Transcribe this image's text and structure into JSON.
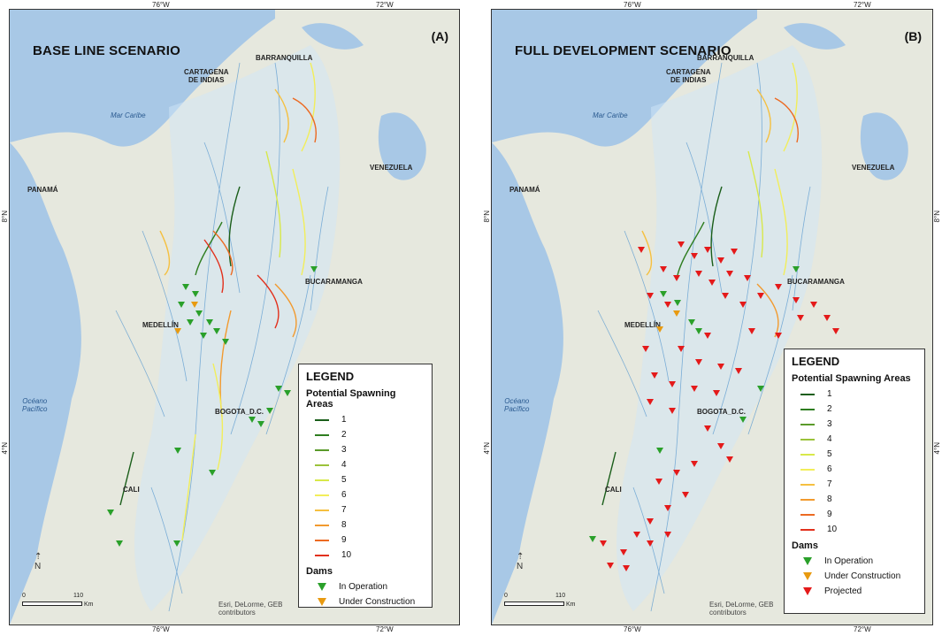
{
  "panels": [
    {
      "title": "BASE LINE SCENARIO",
      "letter": "(A)",
      "grid": {
        "top_left": "76°W",
        "top_right": "72°W",
        "bottom_left": "76°W",
        "bottom_right": "72°W",
        "left_8": "8°N",
        "left_4": "4°N",
        "right_8": "8°N",
        "right_4": "4°N"
      },
      "places": {
        "barranquilla": "BARRANQUILLA",
        "cartagena": "CARTAGENA\nDE INDIAS",
        "mar_caribe": "Mar Caribe",
        "venezuela": "VENEZUELA",
        "panama": "PANAMÁ",
        "bucaramanga": "BUCARAMANGA",
        "medellin": "MEDELLÍN",
        "bogota": "BOGOTA_D.C.",
        "cali": "CALI",
        "oceano": "Océano\nPacífico"
      },
      "legend": {
        "title": "LEGEND",
        "spawning_title": "Potential Spawning Areas",
        "classes": [
          {
            "label": "1",
            "color": "#1a5e1a"
          },
          {
            "label": "2",
            "color": "#2e7d1f"
          },
          {
            "label": "3",
            "color": "#5a9a2a"
          },
          {
            "label": "4",
            "color": "#9bc23a"
          },
          {
            "label": "5",
            "color": "#d8e84a"
          },
          {
            "label": "6",
            "color": "#f2ee5a"
          },
          {
            "label": "7",
            "color": "#f5c040"
          },
          {
            "label": "8",
            "color": "#f29a2e"
          },
          {
            "label": "9",
            "color": "#ec6a22"
          },
          {
            "label": "10",
            "color": "#e2301c"
          }
        ],
        "dams_title": "Dams",
        "dams": [
          {
            "label": "In Operation",
            "color": "#2aa02a"
          },
          {
            "label": "Under Construction",
            "color": "#e89a10"
          }
        ]
      },
      "scale": {
        "zero": "0",
        "value": "110",
        "unit": "Km"
      },
      "credit": "Esri, DeLorme, GEB\ncontributors"
    },
    {
      "title": "FULL DEVELOPMENT SCENARIO",
      "letter": "(B)",
      "grid": {
        "top_left": "76°W",
        "top_right": "72°W",
        "bottom_left": "76°W",
        "bottom_right": "72°W",
        "left_8": "8°N",
        "left_4": "4°N",
        "right_8": "8°N",
        "right_4": "4°N"
      },
      "places": {
        "barranquilla": "BARRANQUILLA",
        "cartagena": "CARTAGENA\nDE INDIAS",
        "mar_caribe": "Mar Caribe",
        "venezuela": "VENEZUELA",
        "panama": "PANAMÁ",
        "bucaramanga": "BUCARAMANGA",
        "medellin": "MEDELLÍN",
        "bogota": "BOGOTA_D.C.",
        "cali": "CALI",
        "oceano": "Océano\nPacífico"
      },
      "legend": {
        "title": "LEGEND",
        "spawning_title": "Potential Spawning Areas",
        "classes": [
          {
            "label": "1",
            "color": "#1a5e1a"
          },
          {
            "label": "2",
            "color": "#2e7d1f"
          },
          {
            "label": "3",
            "color": "#5a9a2a"
          },
          {
            "label": "4",
            "color": "#9bc23a"
          },
          {
            "label": "5",
            "color": "#d8e84a"
          },
          {
            "label": "6",
            "color": "#f2ee5a"
          },
          {
            "label": "7",
            "color": "#f5c040"
          },
          {
            "label": "8",
            "color": "#f29a2e"
          },
          {
            "label": "9",
            "color": "#ec6a22"
          },
          {
            "label": "10",
            "color": "#e2301c"
          }
        ],
        "dams_title": "Dams",
        "dams": [
          {
            "label": "In Operation",
            "color": "#2aa02a"
          },
          {
            "label": "Under Construction",
            "color": "#e89a10"
          },
          {
            "label": "Projected",
            "color": "#e41a1a"
          }
        ]
      },
      "scale": {
        "zero": "0",
        "value": "110",
        "unit": "Km"
      },
      "credit": "Esri, DeLorme, GEB\ncontributors"
    }
  ]
}
